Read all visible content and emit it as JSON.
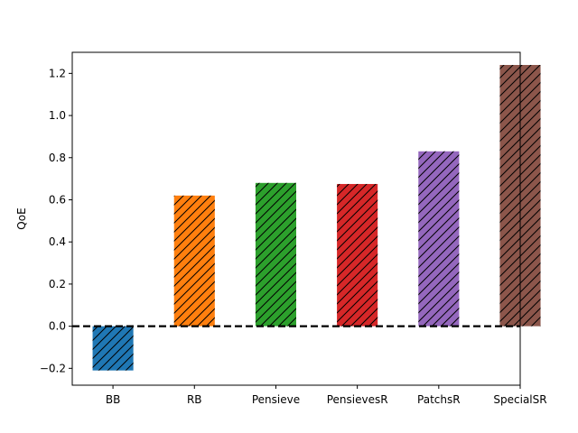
{
  "chart_data": {
    "type": "bar",
    "title": "",
    "xlabel": "",
    "ylabel": "QoE",
    "categories": [
      "BB",
      "RB",
      "Pensieve",
      "PensievesR",
      "PatchsR",
      "SpecialSR"
    ],
    "values": [
      -0.21,
      0.62,
      0.68,
      0.675,
      0.83,
      1.24
    ],
    "colors": [
      "#1f77b4",
      "#ff7f0e",
      "#2ca02c",
      "#d62728",
      "#9467bd",
      "#8c564b"
    ],
    "hatch": "diagonal",
    "ylim": [
      -0.28,
      1.3
    ],
    "yticks": [
      -0.2,
      0.0,
      0.2,
      0.4,
      0.6,
      0.8,
      1.0,
      1.2
    ],
    "ytick_labels": [
      "−0.2",
      "0.0",
      "0.2",
      "0.4",
      "0.6",
      "0.8",
      "1.0",
      "1.2"
    ],
    "reference_line": {
      "y": 0,
      "style": "dashed",
      "color": "#000000"
    },
    "grid": false,
    "legend": "none"
  }
}
